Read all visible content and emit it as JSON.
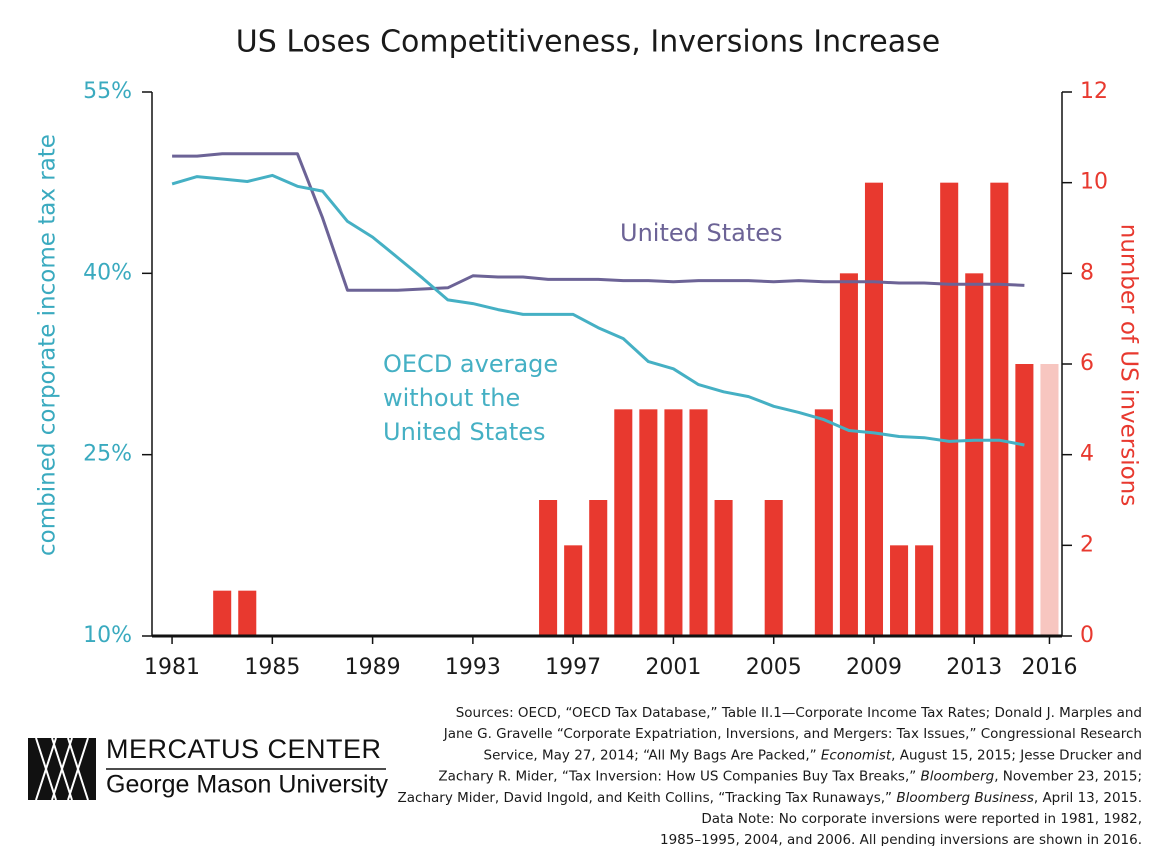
{
  "chart_data": {
    "type": "bar",
    "title": "US Loses Competitiveness, Inversions Increase",
    "y_label": "combined corporate income tax rate",
    "y2_label": "number of US inversions",
    "x": [
      1981,
      1982,
      1983,
      1984,
      1985,
      1986,
      1987,
      1988,
      1989,
      1990,
      1991,
      1992,
      1993,
      1994,
      1995,
      1996,
      1997,
      1998,
      1999,
      2000,
      2001,
      2002,
      2003,
      2004,
      2005,
      2006,
      2007,
      2008,
      2009,
      2010,
      2011,
      2012,
      2013,
      2014,
      2015,
      2016
    ],
    "xlim": [
      1980.2,
      2016.5
    ],
    "xticks": [
      1981,
      1985,
      1989,
      1993,
      1997,
      2001,
      2005,
      2009,
      2013,
      2016
    ],
    "ylim": [
      10,
      55
    ],
    "yticks": [
      {
        "value": 10,
        "label": "10%"
      },
      {
        "value": 25,
        "label": "25%"
      },
      {
        "value": 40,
        "label": "40%"
      },
      {
        "value": 55,
        "label": "55%"
      }
    ],
    "y2lim": [
      0,
      12
    ],
    "y2ticks": [
      0,
      2,
      4,
      6,
      8,
      10,
      12
    ],
    "grid": false,
    "series": [
      {
        "type": "bar",
        "axis": "y2",
        "color": "#e8392f",
        "colors": [
          "#e8392f",
          "#e8392f",
          "#e8392f",
          "#e8392f",
          "#e8392f",
          "#e8392f",
          "#e8392f",
          "#e8392f",
          "#e8392f",
          "#e8392f",
          "#e8392f",
          "#e8392f",
          "#e8392f",
          "#e8392f",
          "#e8392f",
          "#e8392f",
          "#e8392f",
          "#e8392f",
          "#e8392f",
          "#e8392f",
          "#e8392f",
          "#e8392f",
          "#e8392f",
          "#e8392f",
          "#e8392f",
          "#e8392f",
          "#e8392f",
          "#e8392f",
          "#e8392f",
          "#e8392f",
          "#e8392f",
          "#e8392f",
          "#e8392f",
          "#e8392f",
          "#e8392f",
          "#f7c6c0"
        ],
        "values": [
          0,
          0,
          1,
          1,
          0,
          0,
          0,
          0,
          0,
          0,
          0,
          0,
          0,
          0,
          0,
          3,
          2,
          3,
          5,
          5,
          5,
          5,
          3,
          0,
          3,
          0,
          5,
          8,
          10,
          2,
          2,
          10,
          8,
          10,
          6,
          6
        ]
      },
      {
        "type": "line",
        "name": "United States",
        "color": "#6c6396",
        "values": [
          49.7,
          49.7,
          49.9,
          49.9,
          49.9,
          49.9,
          44.6,
          38.6,
          38.6,
          38.6,
          38.7,
          38.8,
          39.8,
          39.7,
          39.7,
          39.5,
          39.5,
          39.5,
          39.4,
          39.4,
          39.3,
          39.4,
          39.4,
          39.4,
          39.3,
          39.4,
          39.3,
          39.3,
          39.3,
          39.2,
          39.2,
          39.1,
          39.1,
          39.1,
          39.0,
          null
        ]
      },
      {
        "type": "line",
        "name_lines": [
          "OECD average",
          "without the",
          "United States"
        ],
        "color": "#45b0c4",
        "values": [
          47.4,
          48.0,
          47.8,
          47.6,
          48.1,
          47.2,
          46.8,
          44.3,
          43.0,
          41.3,
          39.6,
          37.8,
          37.5,
          37.0,
          36.6,
          36.6,
          36.6,
          35.5,
          34.6,
          32.7,
          32.1,
          30.8,
          30.2,
          29.8,
          29.0,
          28.5,
          27.9,
          27.0,
          26.8,
          26.5,
          26.4,
          26.1,
          26.2,
          26.2,
          25.8,
          null
        ]
      }
    ]
  },
  "footer": {
    "sources": [
      [
        "Sources: OECD, “OECD Tax Database,” Table II.1—Corporate Income Tax Rates; Donald J. Marples and"
      ],
      [
        "Jane G. Gravelle “Corporate Expatriation, Inversions, and Mergers: Tax Issues,” Congressional Research"
      ],
      [
        "Service, May 27, 2014; “All My Bags Are Packed,” ",
        {
          "text": "Economist",
          "style": "italic"
        },
        ", August 15, 2015; Jesse Drucker and"
      ],
      [
        "Zachary R. Mider, “Tax Inversion: How US Companies Buy Tax Breaks,” ",
        {
          "text": "Bloomberg",
          "style": "italic"
        },
        ", November 23, 2015;"
      ],
      [
        "Zachary Mider, David Ingold, and Keith Collins, “Tracking Tax Runaways,” ",
        {
          "text": "Bloomberg Business",
          "style": "italic"
        },
        ", April 13, 2015."
      ],
      [
        "Data Note: No corporate inversions were reported in 1981, 1982,"
      ],
      [
        "1985–1995, 2004, and 2006. All pending inversions are shown in 2016."
      ]
    ],
    "logo": {
      "name": "MERCATUS CENTER",
      "subtitle": "George Mason University"
    }
  }
}
